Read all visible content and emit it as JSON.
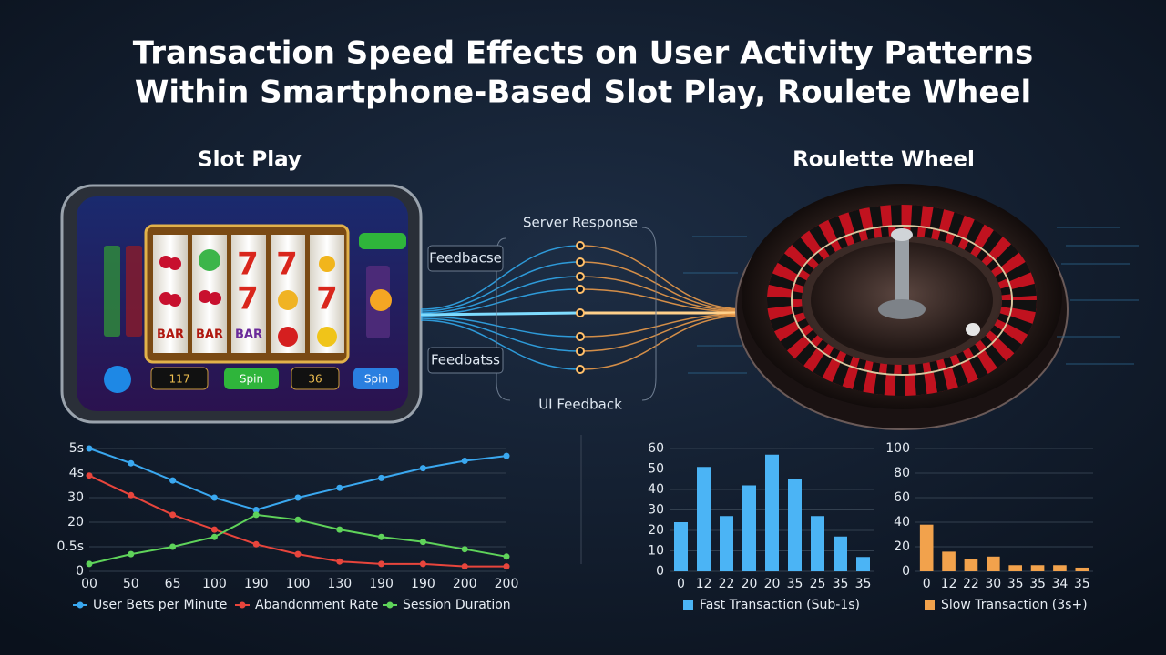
{
  "header": {
    "title_line1": "Transaction Speed Effects on User Activity Patterns",
    "title_line2": "Within Smartphone-Based Slot Play, Roulete Wheel"
  },
  "sections": {
    "left": "Slot Play",
    "right": "Roulette Wheel"
  },
  "flow_labels": {
    "top": "Server Response",
    "upper_box": "Feedbacse",
    "lower_box": "Feedbatss",
    "bottom": "UI Feedback"
  },
  "slot_screen": {
    "seven": "7",
    "bar": "BAR",
    "credits": "117",
    "bet": "36",
    "spin": "Spin"
  },
  "chart_data": [
    {
      "type": "line",
      "categories": [
        "00",
        "50",
        "65",
        "100",
        "190",
        "100",
        "130",
        "190",
        "190",
        "200",
        "200"
      ],
      "ylim": [
        0,
        5
      ],
      "yticks": [
        {
          "value": 0,
          "label": "0"
        },
        {
          "value": 1,
          "label": "0.5s"
        },
        {
          "value": 2,
          "label": "20"
        },
        {
          "value": 3,
          "label": "30"
        },
        {
          "value": 4,
          "label": "4s"
        },
        {
          "value": 5,
          "label": "5s"
        }
      ],
      "grid": true,
      "series": [
        {
          "name": "User Bets per Minute",
          "color": "#3aa8f0",
          "values": [
            5.0,
            4.4,
            3.7,
            3.0,
            2.5,
            3.0,
            3.4,
            3.8,
            4.2,
            4.5,
            4.7
          ]
        },
        {
          "name": "Abandonment Rate",
          "color": "#e8453c",
          "values": [
            3.9,
            3.1,
            2.3,
            1.7,
            1.1,
            0.7,
            0.4,
            0.3,
            0.3,
            0.2,
            0.2
          ]
        },
        {
          "name": "Session Duration",
          "color": "#5fd35a",
          "values": [
            0.3,
            0.7,
            1.0,
            1.4,
            2.3,
            2.1,
            1.7,
            1.4,
            1.2,
            0.9,
            0.6
          ]
        }
      ]
    },
    {
      "type": "bar",
      "categories": [
        "0",
        "12",
        "22",
        "20",
        "20",
        "35",
        "25",
        "35",
        "35"
      ],
      "ylim": [
        0,
        60
      ],
      "yticks": [
        0,
        10,
        20,
        30,
        40,
        50,
        60
      ],
      "grid": true,
      "series": [
        {
          "name": "Fast Transaction (Sub-1s)",
          "color": "#4bb4f5",
          "values": [
            24,
            51,
            27,
            42,
            57,
            45,
            27,
            17,
            7
          ]
        }
      ]
    },
    {
      "type": "bar",
      "categories": [
        "0",
        "12",
        "22",
        "30",
        "35",
        "35",
        "34",
        "35"
      ],
      "ylim": [
        0,
        100
      ],
      "yticks": [
        0,
        20,
        40,
        60,
        80,
        100
      ],
      "grid": true,
      "series": [
        {
          "name": "Slow Transaction (3s+)",
          "color": "#f2a24c",
          "values": [
            38,
            16,
            10,
            12,
            5,
            5,
            5,
            3
          ]
        }
      ]
    }
  ]
}
